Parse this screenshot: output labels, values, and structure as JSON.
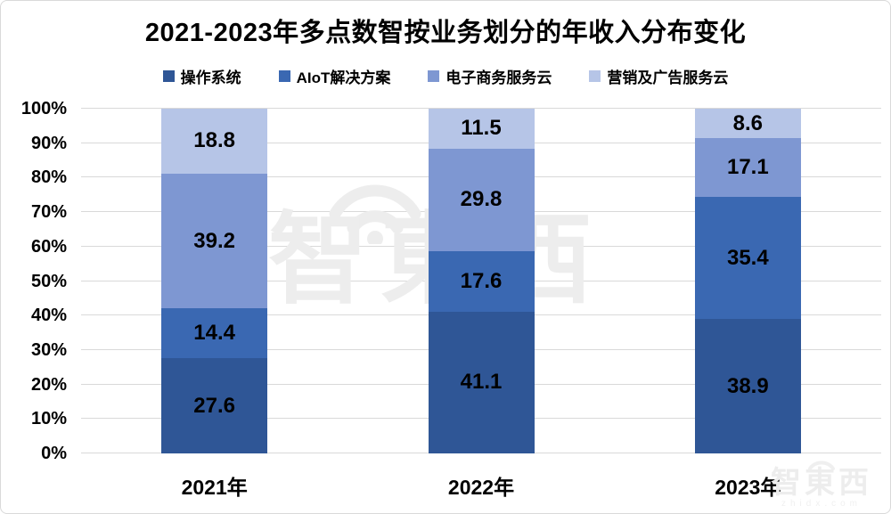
{
  "title": "2021-2023年多点数智按业务划分的年收入分布变化",
  "chart_data": {
    "type": "bar",
    "stacked": true,
    "percent_stacked": true,
    "title": "2021-2023年多点数智按业务划分的年收入分布变化",
    "categories": [
      "2021年",
      "2022年",
      "2023年"
    ],
    "series": [
      {
        "name": "操作系统",
        "color": "#2f5696",
        "values": [
          27.6,
          41.1,
          38.9
        ]
      },
      {
        "name": "AIoT解决方案",
        "color": "#3a68b2",
        "values": [
          14.4,
          17.6,
          35.4
        ]
      },
      {
        "name": "电子商务服务云",
        "color": "#7e97d2",
        "values": [
          39.2,
          29.8,
          17.1
        ]
      },
      {
        "name": "营销及广告服务云",
        "color": "#b6c5e7",
        "values": [
          18.8,
          11.5,
          8.6
        ]
      }
    ],
    "y_ticks": [
      "0%",
      "10%",
      "20%",
      "30%",
      "40%",
      "50%",
      "60%",
      "70%",
      "80%",
      "90%",
      "100%"
    ],
    "ylim": [
      0,
      100
    ],
    "grid": true,
    "grid_color": "#d9d9d9",
    "legend_position": "top",
    "data_label_decimals": 1
  },
  "watermark": {
    "center_text": "智東西",
    "corner_text": "智東西",
    "corner_subtext": "zhidx.com",
    "color": "#ededed"
  }
}
